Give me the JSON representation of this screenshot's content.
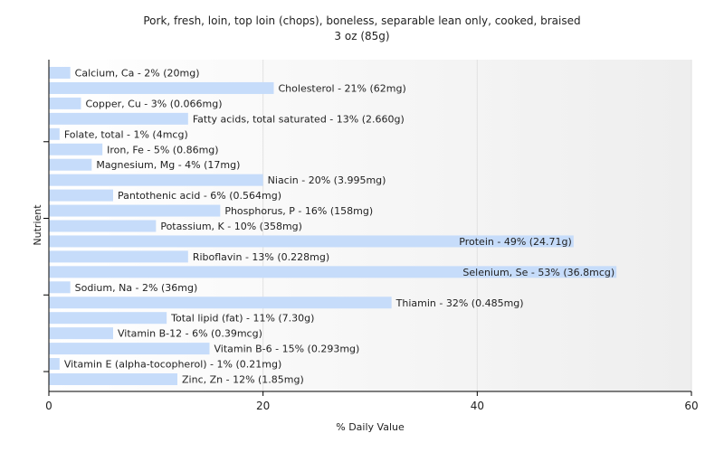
{
  "chart_data": {
    "type": "bar",
    "orientation": "horizontal",
    "title": "Pork, fresh, loin, top loin (chops), boneless, separable lean only, cooked, braised",
    "subtitle": "3 oz (85g)",
    "xlabel": "% Daily Value",
    "ylabel": "Nutrient",
    "xlim": [
      0,
      60
    ],
    "xticks": [
      0,
      20,
      40,
      60
    ],
    "grid": true,
    "bar_color": "#c6dcfa",
    "categories": [
      "Calcium, Ca",
      "Cholesterol",
      "Copper, Cu",
      "Fatty acids, total saturated",
      "Folate, total",
      "Iron, Fe",
      "Magnesium, Mg",
      "Niacin",
      "Pantothenic acid",
      "Phosphorus, P",
      "Potassium, K",
      "Protein",
      "Riboflavin",
      "Selenium, Se",
      "Sodium, Na",
      "Thiamin",
      "Total lipid (fat)",
      "Vitamin B-12",
      "Vitamin B-6",
      "Vitamin E (alpha-tocopherol)",
      "Zinc, Zn"
    ],
    "values": [
      2,
      21,
      3,
      13,
      1,
      5,
      4,
      20,
      6,
      16,
      10,
      49,
      13,
      53,
      2,
      32,
      11,
      6,
      15,
      1,
      12
    ],
    "labels": [
      "Calcium, Ca - 2% (20mg)",
      "Cholesterol - 21% (62mg)",
      "Copper, Cu - 3% (0.066mg)",
      "Fatty acids, total saturated - 13% (2.660g)",
      "Folate, total - 1% (4mcg)",
      "Iron, Fe - 5% (0.86mg)",
      "Magnesium, Mg - 4% (17mg)",
      "Niacin - 20% (3.995mg)",
      "Pantothenic acid - 6% (0.564mg)",
      "Phosphorus, P - 16% (158mg)",
      "Potassium, K - 10% (358mg)",
      "Protein - 49% (24.71g)",
      "Riboflavin - 13% (0.228mg)",
      "Selenium, Se - 53% (36.8mcg)",
      "Sodium, Na - 2% (36mg)",
      "Thiamin - 32% (0.485mg)",
      "Total lipid (fat) - 11% (7.30g)",
      "Vitamin B-12 - 6% (0.39mcg)",
      "Vitamin B-6 - 15% (0.293mg)",
      "Vitamin E (alpha-tocopherol) - 1% (0.21mg)",
      "Zinc, Zn - 12% (1.85mg)"
    ]
  }
}
